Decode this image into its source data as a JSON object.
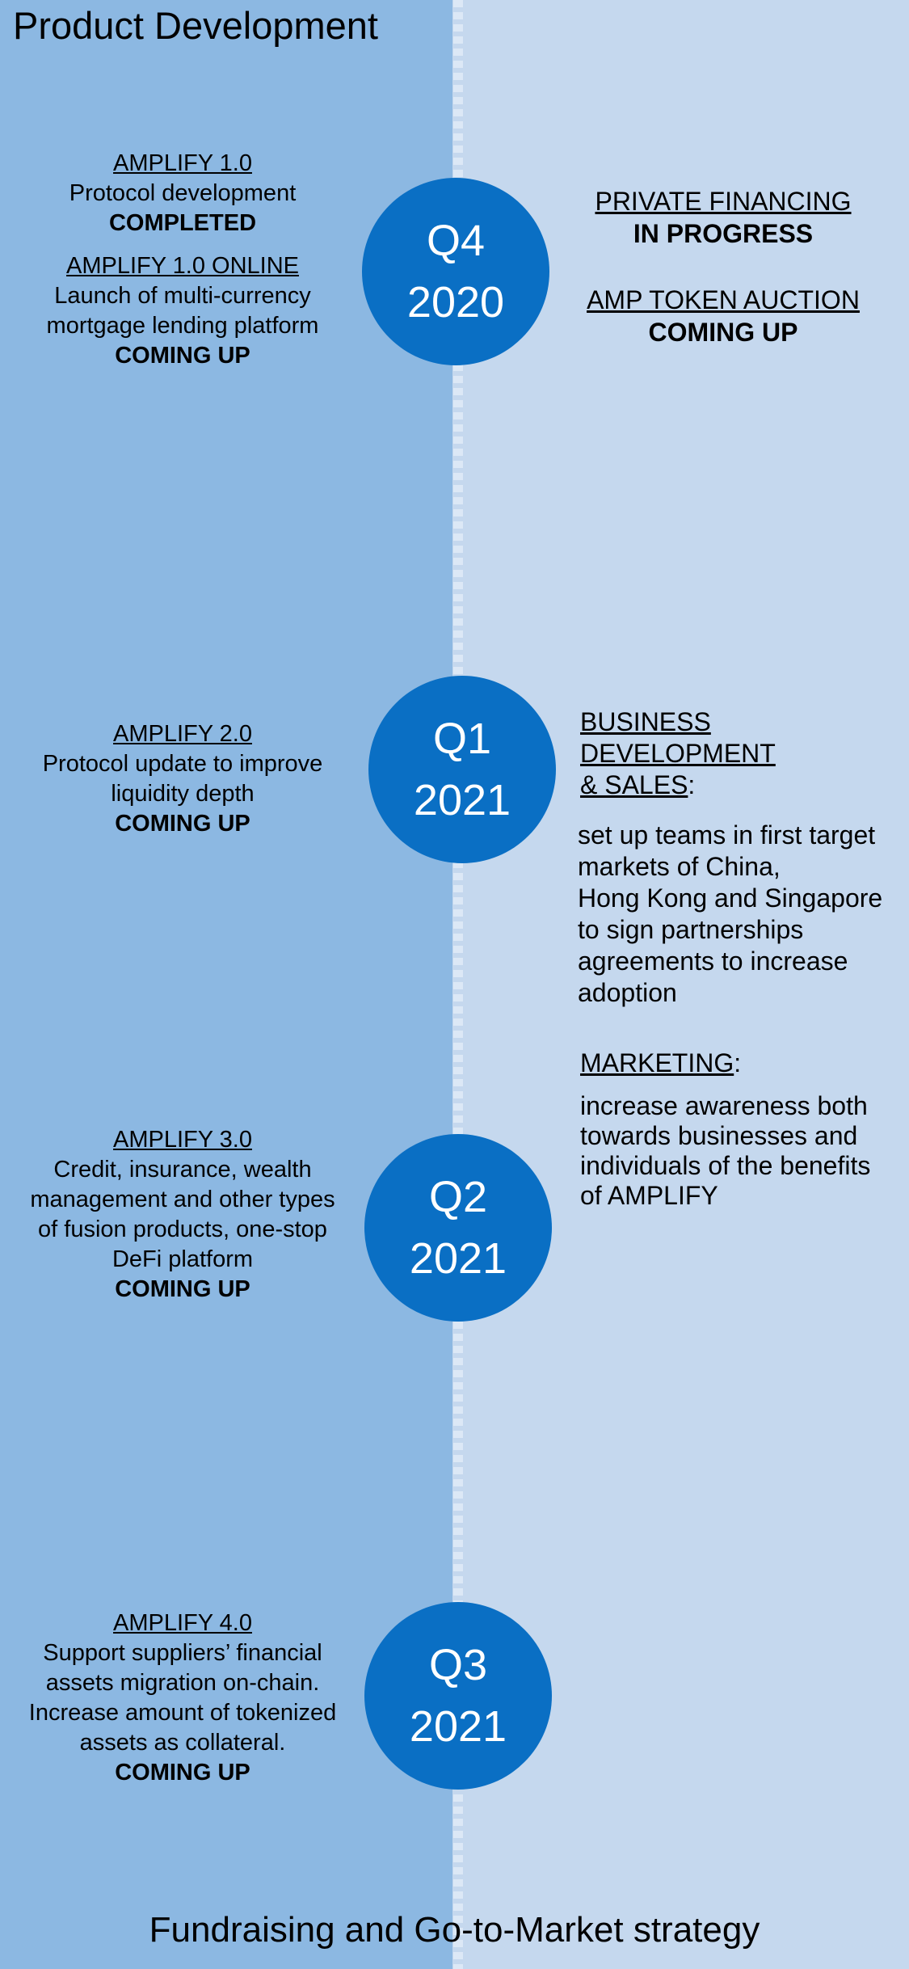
{
  "headings": {
    "product_development": "Product Development",
    "go_to_market": "Fundraising and Go-to-Market strategy"
  },
  "colors": {
    "left_panel": "#8cb8e2",
    "right_panel": "#c5d8ee",
    "circle": "#0a6fc4",
    "divider": "#dce8f6"
  },
  "milestones": [
    {
      "quarter": "Q4",
      "year": "2020",
      "product": [
        {
          "title": "AMPLIFY 1.0",
          "lines": [
            "Protocol development"
          ],
          "status": "COMPLETED"
        },
        {
          "title": "AMPLIFY 1.0 ONLINE",
          "lines": [
            "Launch of multi-currency",
            "mortgage lending platform"
          ],
          "status": "COMING UP"
        }
      ],
      "fundraising": [
        {
          "title": "PRIVATE FINANCING",
          "status": "IN PROGRESS"
        },
        {
          "title": "AMP TOKEN AUCTION",
          "status": "COMING UP"
        }
      ]
    },
    {
      "quarter": "Q1",
      "year": "2021",
      "product": [
        {
          "title": "AMPLIFY 2.0",
          "lines": [
            "Protocol update to improve",
            "liquidity depth"
          ],
          "status": "COMING UP"
        }
      ],
      "strategy": {
        "business_title": [
          "BUSINESS",
          "DEVELOPMENT",
          "& SALES"
        ],
        "business_colon": ":",
        "business_text": [
          "set up teams in first target",
          "markets of China,",
          "Hong Kong and Singapore",
          "to sign partnerships",
          "agreements to increase",
          "adoption"
        ],
        "marketing_title": "MARKETING",
        "marketing_colon": ":",
        "marketing_text": [
          "increase awareness both",
          "towards businesses and",
          "individuals of the benefits",
          "of AMPLIFY"
        ]
      }
    },
    {
      "quarter": "Q2",
      "year": "2021",
      "product": [
        {
          "title": "AMPLIFY 3.0",
          "lines": [
            "Credit, insurance, wealth",
            "management and other types",
            "of fusion products, one-stop",
            "DeFi platform"
          ],
          "status": "COMING UP"
        }
      ]
    },
    {
      "quarter": "Q3",
      "year": "2021",
      "product": [
        {
          "title": "AMPLIFY 4.0",
          "lines": [
            "Support suppliers’ financial",
            "assets migration on-chain.",
            "Increase amount of tokenized",
            "assets as collateral."
          ],
          "status": "COMING UP"
        }
      ]
    }
  ]
}
